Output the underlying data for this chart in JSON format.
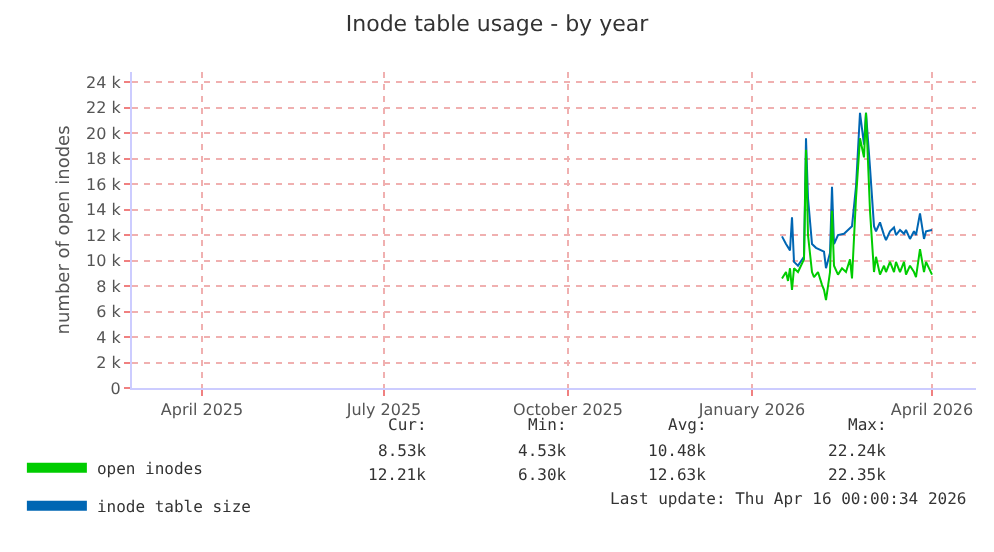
{
  "chart_data": {
    "type": "line",
    "title": "Inode table usage - by year",
    "ylabel": "number of open inodes",
    "xlim": [
      "2025-03-11",
      "2026-05-07"
    ],
    "xticks": [
      {
        "value": "2025-04-15",
        "label": "April 2025"
      },
      {
        "value": "2025-07-15",
        "label": "July 2025"
      },
      {
        "value": "2025-10-15",
        "label": "October 2025"
      },
      {
        "value": "2026-01-15",
        "label": "January 2026"
      },
      {
        "value": "2026-04-15",
        "label": "April 2026"
      }
    ],
    "ylim": [
      0,
      24800
    ],
    "yticks": [
      {
        "value": 0,
        "label": "0"
      },
      {
        "value": 2000,
        "label": "2 k"
      },
      {
        "value": 4000,
        "label": "4 k"
      },
      {
        "value": 6000,
        "label": "6 k"
      },
      {
        "value": 8000,
        "label": "8 k"
      },
      {
        "value": 10000,
        "label": "10 k"
      },
      {
        "value": 12000,
        "label": "12 k"
      },
      {
        "value": 14000,
        "label": "14 k"
      },
      {
        "value": 16000,
        "label": "16 k"
      },
      {
        "value": 18000,
        "label": "18 k"
      },
      {
        "value": 20000,
        "label": "20 k"
      },
      {
        "value": 22000,
        "label": "22 k"
      },
      {
        "value": 24000,
        "label": "24 k"
      }
    ],
    "grid": true,
    "legend": "bottom left",
    "series": [
      {
        "name": "open inodes",
        "color": "#00cc00",
        "x": [
          "2026-01-30",
          "2026-02-01",
          "2026-02-02",
          "2026-02-03",
          "2026-02-04",
          "2026-02-05",
          "2026-02-07",
          "2026-02-10",
          "2026-02-11",
          "2026-02-12",
          "2026-02-14",
          "2026-02-15",
          "2026-02-17",
          "2026-02-19",
          "2026-02-20",
          "2026-02-21",
          "2026-02-23",
          "2026-02-24",
          "2026-02-25",
          "2026-02-27",
          "2026-03-01",
          "2026-03-03",
          "2026-03-05",
          "2026-03-06",
          "2026-03-08",
          "2026-03-10",
          "2026-03-12",
          "2026-03-13",
          "2026-03-15",
          "2026-03-17",
          "2026-03-18",
          "2026-03-20",
          "2026-03-22",
          "2026-03-23",
          "2026-03-25",
          "2026-03-27",
          "2026-03-28",
          "2026-03-30",
          "2026-04-01",
          "2026-04-02",
          "2026-04-04",
          "2026-04-06",
          "2026-04-07",
          "2026-04-09",
          "2026-04-11",
          "2026-04-12",
          "2026-04-15"
        ],
        "values": [
          8600,
          9100,
          8400,
          9400,
          7700,
          9400,
          9100,
          10100,
          18700,
          12000,
          9100,
          8700,
          9100,
          8100,
          7700,
          6900,
          9100,
          13900,
          9600,
          8900,
          9400,
          9100,
          10100,
          8600,
          14900,
          19600,
          18100,
          21600,
          13900,
          9100,
          10300,
          8900,
          9600,
          9100,
          9900,
          9100,
          9900,
          9100,
          9900,
          8900,
          9600,
          9100,
          8700,
          10900,
          9100,
          9900,
          8900
        ]
      },
      {
        "name": "inode table size",
        "color": "#0066b3",
        "x": [
          "2026-01-30",
          "2026-02-01",
          "2026-02-03",
          "2026-02-04",
          "2026-02-05",
          "2026-02-07",
          "2026-02-10",
          "2026-02-11",
          "2026-02-12",
          "2026-02-14",
          "2026-02-16",
          "2026-02-20",
          "2026-02-21",
          "2026-02-23",
          "2026-02-24",
          "2026-02-25",
          "2026-02-27",
          "2026-03-02",
          "2026-03-04",
          "2026-03-06",
          "2026-03-08",
          "2026-03-10",
          "2026-03-12",
          "2026-03-13",
          "2026-03-15",
          "2026-03-17",
          "2026-03-18",
          "2026-03-20",
          "2026-03-22",
          "2026-03-23",
          "2026-03-25",
          "2026-03-27",
          "2026-03-28",
          "2026-03-30",
          "2026-04-01",
          "2026-04-02",
          "2026-04-04",
          "2026-04-06",
          "2026-04-07",
          "2026-04-09",
          "2026-04-11",
          "2026-04-12",
          "2026-04-15"
        ],
        "values": [
          11900,
          11300,
          10800,
          13400,
          9900,
          9600,
          10300,
          19600,
          14900,
          11300,
          11000,
          10700,
          9400,
          10600,
          15800,
          11300,
          12000,
          12100,
          12400,
          12700,
          15800,
          21600,
          19100,
          21600,
          17300,
          12700,
          12300,
          13000,
          12000,
          11600,
          12300,
          12600,
          12000,
          12400,
          12100,
          12400,
          11700,
          12300,
          12000,
          13700,
          11700,
          12300,
          12400
        ]
      }
    ],
    "annotations": [
      "Cur:",
      "Min:",
      "Avg:",
      "Max:",
      "8.53k",
      "4.53k",
      "10.48k",
      "22.24k",
      "12.21k",
      "6.30k",
      "12.63k",
      "22.35k",
      "Last update: Thu Apr 16 00:00:34 2026"
    ]
  }
}
